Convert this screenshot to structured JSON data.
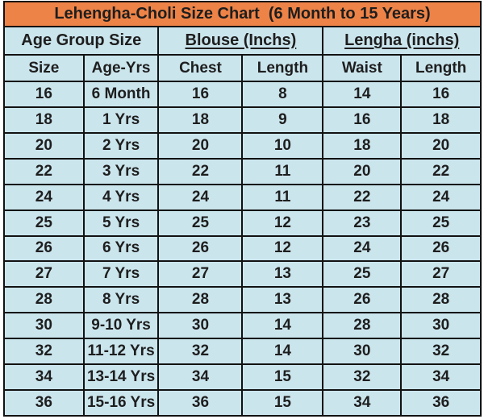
{
  "colors": {
    "title_background": "#ee8347",
    "cell_background": "#cbe5ed",
    "border": "#121212",
    "text": "#1e1e1e"
  },
  "chart_data": {
    "type": "table",
    "title": "Lehengha-Choli Size Chart  (6 Month to 15 Years)",
    "column_groups": [
      {
        "label": "Age Group Size",
        "span": 2,
        "underline": false
      },
      {
        "label": "Blouse (Inchs)",
        "span": 2,
        "underline": true
      },
      {
        "label": "Lengha (inchs)",
        "span": 2,
        "underline": true
      }
    ],
    "columns": [
      "Size",
      "Age-Yrs",
      "Chest",
      "Length",
      "Waist",
      "Length"
    ],
    "rows": [
      [
        "16",
        "6 Month",
        "16",
        "8",
        "14",
        "16"
      ],
      [
        "18",
        "1 Yrs",
        "18",
        "9",
        "16",
        "18"
      ],
      [
        "20",
        "2 Yrs",
        "20",
        "10",
        "18",
        "20"
      ],
      [
        "22",
        "3 Yrs",
        "22",
        "11",
        "20",
        "22"
      ],
      [
        "24",
        "4 Yrs",
        "24",
        "11",
        "22",
        "24"
      ],
      [
        "25",
        "5 Yrs",
        "25",
        "12",
        "23",
        "25"
      ],
      [
        "26",
        "6 Yrs",
        "26",
        "12",
        "24",
        "26"
      ],
      [
        "27",
        "7 Yrs",
        "27",
        "13",
        "25",
        "27"
      ],
      [
        "28",
        "8 Yrs",
        "28",
        "13",
        "26",
        "28"
      ],
      [
        "30",
        "9-10 Yrs",
        "30",
        "14",
        "28",
        "30"
      ],
      [
        "32",
        "11-12 Yrs",
        "32",
        "14",
        "30",
        "32"
      ],
      [
        "34",
        "13-14 Yrs",
        "34",
        "15",
        "32",
        "34"
      ],
      [
        "36",
        "15-16 Yrs",
        "36",
        "15",
        "34",
        "36"
      ]
    ],
    "layout": {
      "column_width_percents": [
        16.7,
        15.7,
        17.6,
        16.9,
        16.4,
        16.7
      ],
      "grid": true,
      "legend": "none"
    }
  }
}
